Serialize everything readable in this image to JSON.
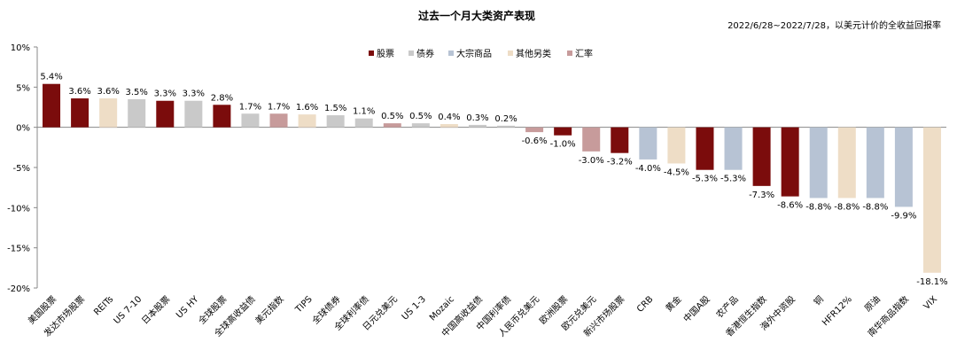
{
  "chart_data": {
    "type": "bar",
    "title": "过去一个月大类资产表现",
    "subtitle": "2022/6/28~2022/7/28，以美元计价的全收益回报率",
    "ylim": [
      -20,
      10
    ],
    "yticks": [
      "10%",
      "5%",
      "0%",
      "-5%",
      "-10%",
      "-15%",
      "-20%"
    ],
    "ytick_values": [
      10,
      5,
      0,
      -5,
      -10,
      -15,
      -20
    ],
    "grid": false,
    "legend_position": "top-center",
    "legend": [
      {
        "key": "equity",
        "name": "股票",
        "color": "#7B0C0C"
      },
      {
        "key": "bond",
        "name": "债券",
        "color": "#C9C9C9"
      },
      {
        "key": "commodity",
        "name": "大宗商品",
        "color": "#B7C3D4"
      },
      {
        "key": "other",
        "name": "其他另类",
        "color": "#EEDDC6"
      },
      {
        "key": "fx",
        "name": "汇率",
        "color": "#C79B9B"
      }
    ],
    "categories": [
      "美国股票",
      "发达市场股票",
      "REITs",
      "US 7-10",
      "日本股票",
      "US HY",
      "全球股票",
      "全球高收益债",
      "美元指数",
      "TIPS",
      "全球债券",
      "全球利率债",
      "日元兑美元",
      "US 1-3",
      "Mozaic",
      "中国高收益债",
      "中国利率债",
      "人民币兑美元",
      "欧洲股票",
      "欧元兑美元",
      "新兴市场股票",
      "CRB",
      "黄金",
      "中国A股",
      "农产品",
      "香港恒生指数",
      "海外中资股",
      "铜",
      "HFR12%",
      "原油",
      "南华商品指数",
      "VIX"
    ],
    "values": [
      5.4,
      3.6,
      3.6,
      3.5,
      3.3,
      3.3,
      2.8,
      1.7,
      1.7,
      1.6,
      1.5,
      1.1,
      0.5,
      0.5,
      0.4,
      0.3,
      0.2,
      -0.6,
      -1.0,
      -3.0,
      -3.2,
      -4.0,
      -4.5,
      -5.3,
      -5.3,
      -7.3,
      -8.6,
      -8.8,
      -8.8,
      -8.8,
      -9.9,
      -18.1
    ],
    "data_labels": [
      "5.4%",
      "3.6%",
      "3.6%",
      "3.5%",
      "3.3%",
      "3.3%",
      "2.8%",
      "1.7%",
      "1.7%",
      "1.6%",
      "1.5%",
      "1.1%",
      "0.5%",
      "0.5%",
      "0.4%",
      "0.3%",
      "0.2%",
      "-0.6%",
      "-1.0%",
      "-3.0%",
      "-3.2%",
      "-4.0%",
      "-4.5%",
      "-5.3%",
      "-5.3%",
      "-7.3%",
      "-8.6%",
      "-8.8%",
      "-8.8%",
      "-8.8%",
      "-9.9%",
      "-18.1%"
    ],
    "groups": [
      "equity",
      "equity",
      "other",
      "bond",
      "equity",
      "bond",
      "equity",
      "bond",
      "fx",
      "other",
      "bond",
      "bond",
      "fx",
      "bond",
      "other",
      "bond",
      "bond",
      "fx",
      "equity",
      "fx",
      "equity",
      "commodity",
      "other",
      "equity",
      "commodity",
      "equity",
      "equity",
      "commodity",
      "other",
      "commodity",
      "commodity",
      "other"
    ]
  }
}
